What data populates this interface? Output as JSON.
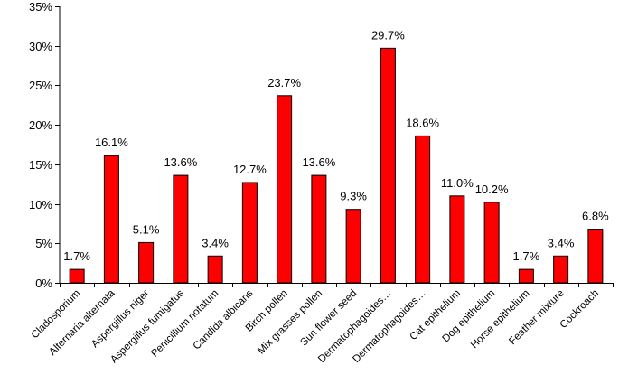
{
  "chart_data": {
    "type": "bar",
    "categories": [
      "Cladosporium",
      "Alternaria alternata",
      "Aspergillus niger",
      "Aspergillus fumigatus",
      "Penicillium notatum",
      "Candida albicans",
      "Birch pollen",
      "Mix grasses pollen",
      "Sun flower seed",
      "Dermatophagoides…",
      "Dermatophagoides…",
      "Cat epithelium",
      "Dog epithelium",
      "Horse epithelium",
      "Feather mixture",
      "Cockroach"
    ],
    "values": [
      1.7,
      16.1,
      5.1,
      13.6,
      3.4,
      12.7,
      23.7,
      13.6,
      9.3,
      29.7,
      18.6,
      11.0,
      10.2,
      1.7,
      3.4,
      6.8
    ],
    "data_labels": [
      "1.7%",
      "16.1%",
      "5.1%",
      "13.6%",
      "3.4%",
      "12.7%",
      "23.7%",
      "13.6%",
      "9.3%",
      "29.7%",
      "18.6%",
      "11.0%",
      "10.2%",
      "1.7%",
      "3.4%",
      "6.8%"
    ],
    "title": "",
    "xlabel": "",
    "ylabel": "",
    "ylim": [
      0,
      35
    ],
    "y_ticks": [
      0,
      5,
      10,
      15,
      20,
      25,
      30,
      35
    ],
    "y_tick_labels": [
      "0%",
      "5%",
      "10%",
      "15%",
      "20%",
      "25%",
      "30%",
      "35%"
    ],
    "bar_color": "#ff0000",
    "bar_edge_color": "#000000",
    "grid": false,
    "legend": "none"
  }
}
